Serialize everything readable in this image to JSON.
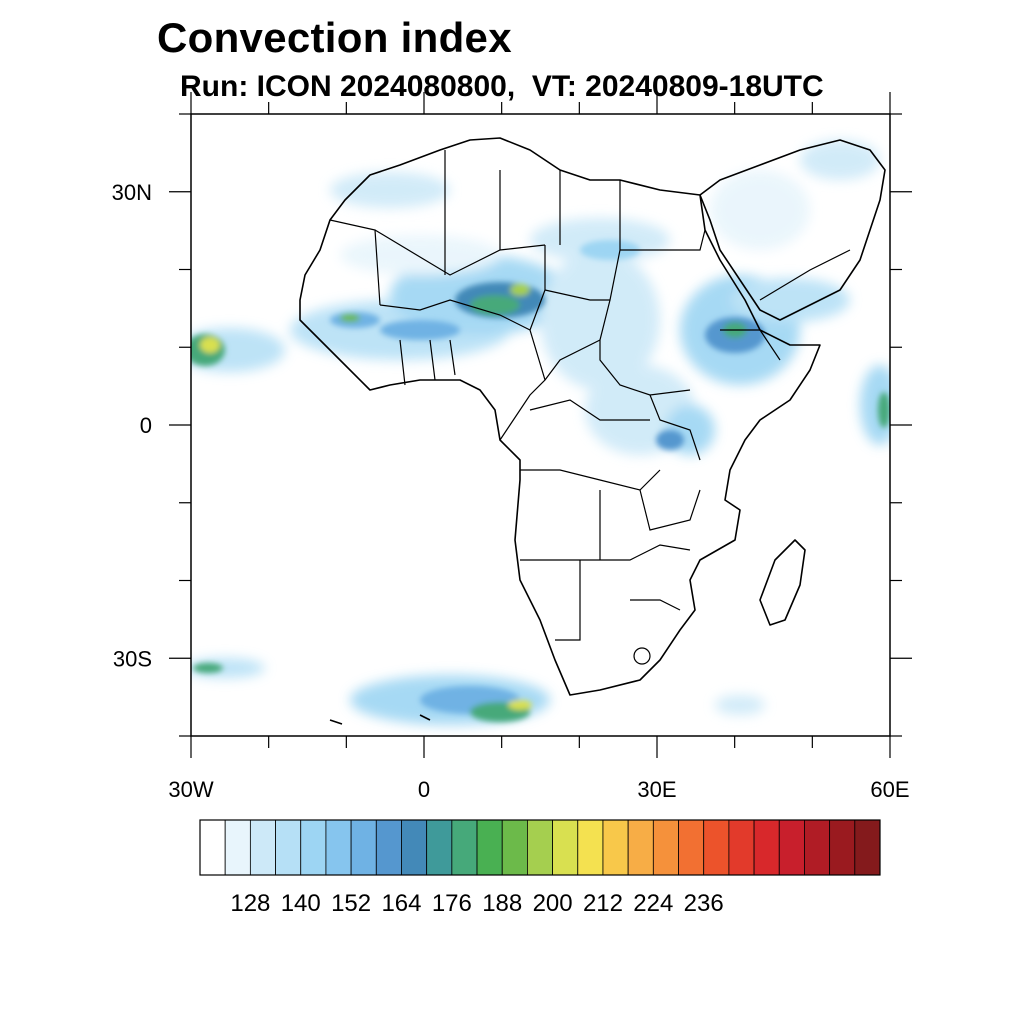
{
  "title": "Convection index",
  "subtitle": "Run: ICON 2024080800,  VT: 20240809-18UTC",
  "map": {
    "lon_range": [
      -30,
      60
    ],
    "lat_range": [
      -40,
      40
    ],
    "lon_ticks": [
      {
        "value": -30,
        "label": "30W"
      },
      {
        "value": 0,
        "label": "0"
      },
      {
        "value": 30,
        "label": "30E"
      },
      {
        "value": 60,
        "label": "60E"
      }
    ],
    "lat_ticks": [
      {
        "value": 30,
        "label": "30N"
      },
      {
        "value": 0,
        "label": "0"
      },
      {
        "value": -30,
        "label": "30S"
      }
    ]
  },
  "colorbar": {
    "levels": [
      122,
      128,
      134,
      140,
      146,
      152,
      158,
      164,
      170,
      176,
      182,
      188,
      194,
      200,
      206,
      212,
      218,
      224,
      230,
      236
    ],
    "labels": [
      "128",
      "140",
      "152",
      "164",
      "176",
      "188",
      "200",
      "212",
      "224",
      "236"
    ],
    "colors": [
      "#ffffff",
      "#e8f5fc",
      "#cde9f8",
      "#b6e0f6",
      "#9dd5f3",
      "#86c5ee",
      "#6fb2e4",
      "#5597cf",
      "#4389b8",
      "#3f9a9a",
      "#46a97a",
      "#49b052",
      "#6cba4a",
      "#a5cf4f",
      "#d9e050",
      "#f4e150",
      "#f8c84a",
      "#f7ad46",
      "#f5913b",
      "#f27032",
      "#ec532b",
      "#e23a2b",
      "#d8282b",
      "#c81f2c",
      "#b01c25",
      "#9a1a1f",
      "#841a1c"
    ]
  }
}
